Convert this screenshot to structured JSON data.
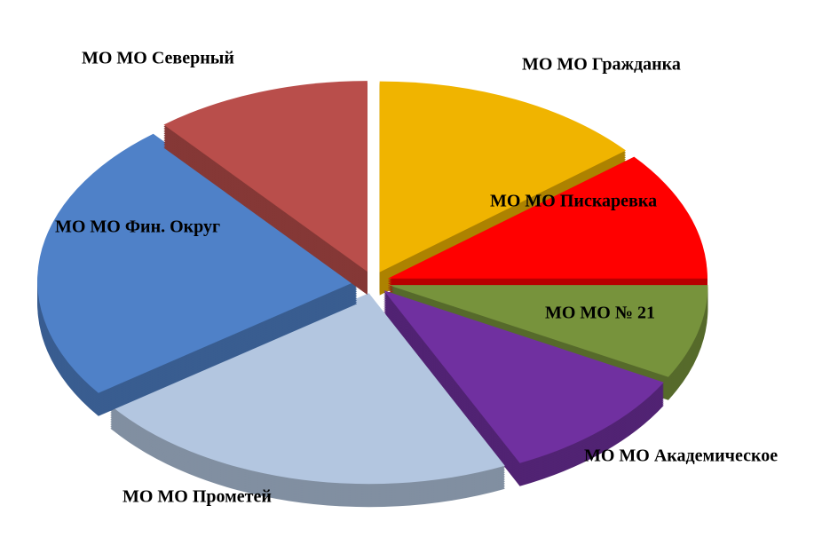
{
  "chart_data": {
    "type": "pie",
    "categories": [
      "МО МО Гражданка",
      "МО МО Пискаревка",
      "МО МО № 21",
      "МО МО Академическое",
      "МО МО Прометей",
      "МО МО Фин. Округ",
      "МО МО Северный"
    ],
    "values": [
      14,
      11,
      8,
      10,
      22,
      24,
      11
    ],
    "colors": [
      "#f0b400",
      "#ff0000",
      "#77933c",
      "#7030a0",
      "#b3c6e0",
      "#4f81c8",
      "#b94e4b"
    ]
  }
}
